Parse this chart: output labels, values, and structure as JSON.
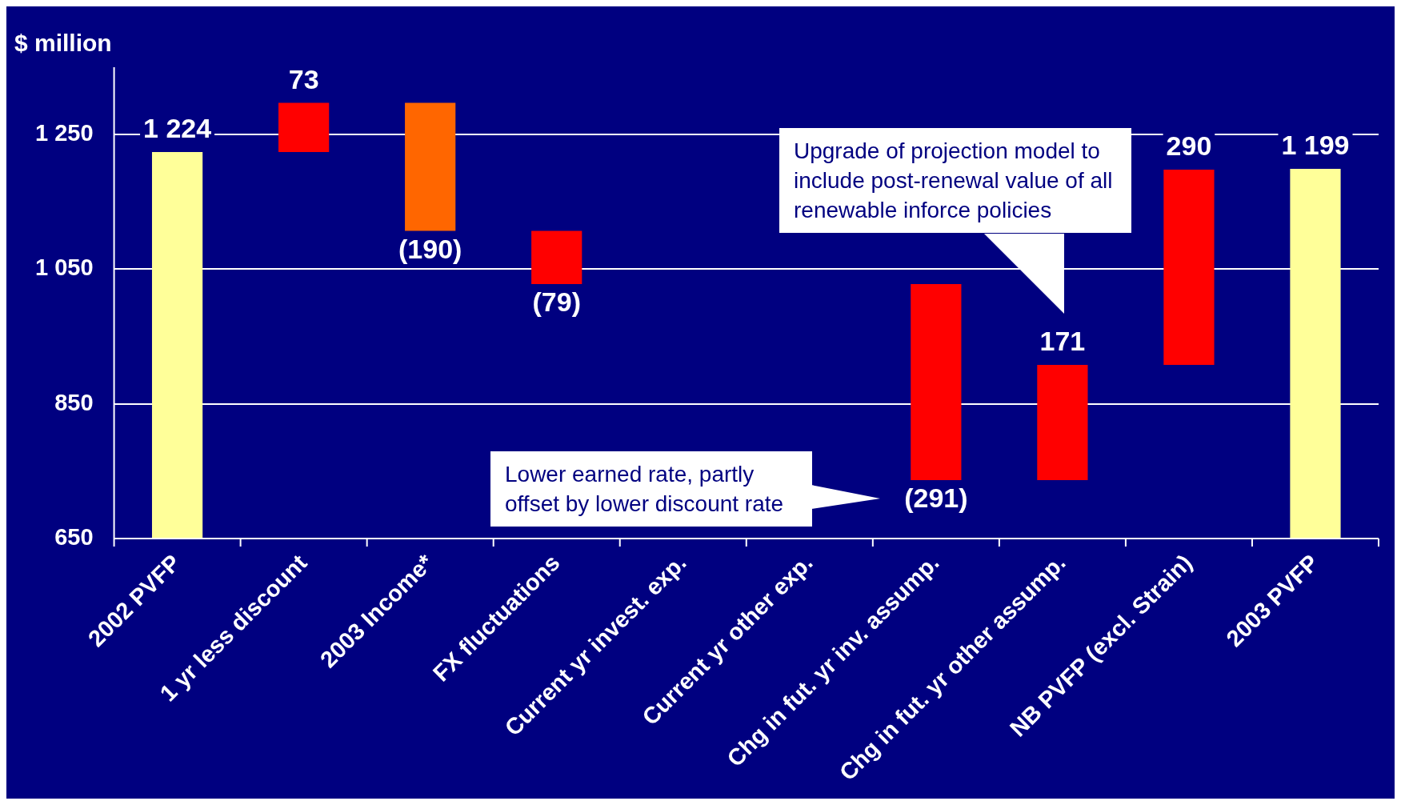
{
  "chart_data": {
    "type": "bar",
    "ylabel": "$ million",
    "categories": [
      "2002 PVFP",
      "1 yr less discount",
      "2003 Income*",
      "FX fluctuations",
      "Current yr invest. exp.",
      "Current yr other exp.",
      "Chg in fut. yr inv. assump.",
      "Chg in fut. yr other assump.",
      "NB PVFP (excl. Strain)",
      "2003 PVFP"
    ],
    "values": [
      1224,
      73,
      -190,
      -79,
      null,
      null,
      -291,
      171,
      290,
      1199
    ],
    "base": [
      0,
      1224,
      1297,
      1107,
      null,
      null,
      1028,
      737,
      908,
      0
    ],
    "colors": [
      "#ffff99",
      "#ff0000",
      "#ff6600",
      "#ff0000",
      null,
      null,
      "#ff0000",
      "#ff0000",
      "#ff0000",
      "#ffff99"
    ],
    "value_labels": [
      "1 224",
      "73",
      "(190)",
      "(79)",
      null,
      null,
      "(291)",
      "171",
      "290",
      "1 199"
    ],
    "ylim": [
      650,
      1350
    ],
    "yticks": [
      {
        "value": 650,
        "label": "650"
      },
      {
        "value": 850,
        "label": "850"
      },
      {
        "value": 1050,
        "label": "1 050"
      },
      {
        "value": 1250,
        "label": "1 250"
      }
    ],
    "grid": "y",
    "legend": false,
    "annotations": [
      "Upgrade of projection model to include post-renewal value of all renewable inforce policies",
      "Lower earned rate, partly offset by lower discount rate"
    ]
  }
}
